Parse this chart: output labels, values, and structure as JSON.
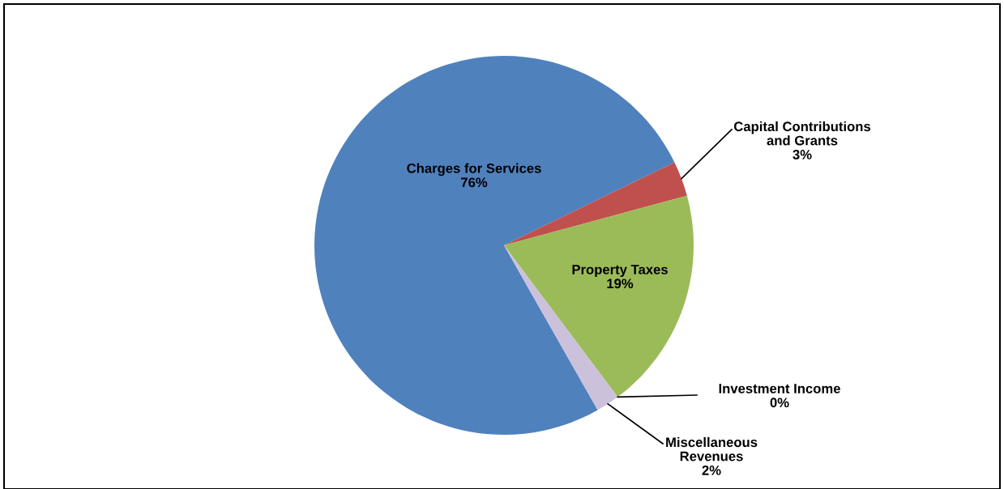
{
  "chart_data": {
    "type": "pie",
    "categories": [
      "Charges for Services",
      "Capital Contributions\nand Grants",
      "Property Taxes",
      "Investment Income",
      "Miscellaneous\nRevenues"
    ],
    "values": [
      76,
      3,
      19,
      0,
      2
    ],
    "colors": [
      "#4f81bd",
      "#c0504d",
      "#9bbb59",
      "#8064a2",
      "#ccc1da"
    ],
    "value_labels": [
      "76%",
      "3%",
      "19%",
      "0%",
      "2%"
    ],
    "legend": false
  }
}
